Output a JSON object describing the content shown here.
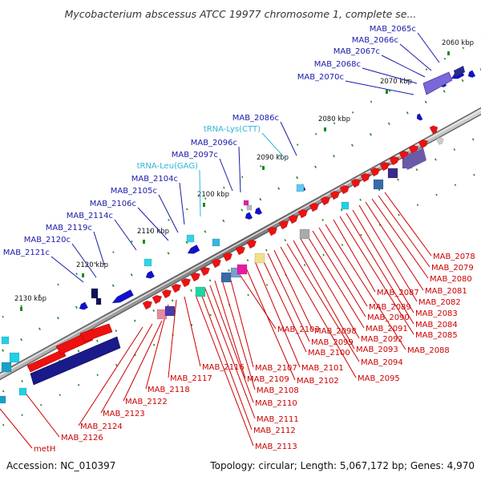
{
  "title": "Mycobacterium abscessus ATCC 19977 chromosome 1, complete se...",
  "footer": {
    "accession": "Accession: NC_010397",
    "summary": "Topology: circular; Length: 5,067,172 bp; Genes: 4,970"
  },
  "colors": {
    "minus_strand_label": "#1a1aa8",
    "rna_label": "#31b6d8",
    "plus_strand_label": "#cc0000",
    "plus_cds": "#ee1111",
    "minus_cds": "#1111cc",
    "backbone": "#888888"
  },
  "scale_ticks": [
    {
      "label": "2060 kbp"
    },
    {
      "label": "2070 kbp"
    },
    {
      "label": "2080 kbp"
    },
    {
      "label": "2090 kbp"
    },
    {
      "label": "2100 kbp"
    },
    {
      "label": "2110 kbp"
    },
    {
      "label": "2120 kbp"
    },
    {
      "label": "2130 kbp"
    }
  ],
  "upper_labels": [
    {
      "text": "MAB_2065c",
      "type": "minus"
    },
    {
      "text": "MAB_2066c",
      "type": "minus"
    },
    {
      "text": "MAB_2067c",
      "type": "minus"
    },
    {
      "text": "MAB_2068c",
      "type": "minus"
    },
    {
      "text": "MAB_2070c",
      "type": "minus"
    },
    {
      "text": "MAB_2086c",
      "type": "minus"
    },
    {
      "text": "tRNA-Lys(CTT)",
      "type": "rna"
    },
    {
      "text": "MAB_2096c",
      "type": "minus"
    },
    {
      "text": "MAB_2097c",
      "type": "minus"
    },
    {
      "text": "tRNA-Leu(GAG)",
      "type": "rna"
    },
    {
      "text": "MAB_2104c",
      "type": "minus"
    },
    {
      "text": "MAB_2105c",
      "type": "minus"
    },
    {
      "text": "MAB_2106c",
      "type": "minus"
    },
    {
      "text": "MAB_2114c",
      "type": "minus"
    },
    {
      "text": "MAB_2119c",
      "type": "minus"
    },
    {
      "text": "MAB_2120c",
      "type": "minus"
    },
    {
      "text": "MAB_2121c",
      "type": "minus"
    }
  ],
  "lower_labels": [
    {
      "text": "MAB_2078"
    },
    {
      "text": "MAB_2079"
    },
    {
      "text": "MAB_2080"
    },
    {
      "text": "MAB_2081"
    },
    {
      "text": "MAB_2082"
    },
    {
      "text": "MAB_2083"
    },
    {
      "text": "MAB_2084"
    },
    {
      "text": "MAB_2085"
    },
    {
      "text": "MAB_2087"
    },
    {
      "text": "MAB_2088"
    },
    {
      "text": "MAB_2089"
    },
    {
      "text": "MAB_2090"
    },
    {
      "text": "MAB_2091"
    },
    {
      "text": "MAB_2092"
    },
    {
      "text": "MAB_2093"
    },
    {
      "text": "MAB_2094"
    },
    {
      "text": "MAB_2095"
    },
    {
      "text": "MAB_2098"
    },
    {
      "text": "MAB_2099"
    },
    {
      "text": "MAB_2100"
    },
    {
      "text": "MAB_2101"
    },
    {
      "text": "MAB_2102"
    },
    {
      "text": "MAB_2103"
    },
    {
      "text": "MAB_2107"
    },
    {
      "text": "MAB_2108"
    },
    {
      "text": "MAB_2109"
    },
    {
      "text": "MAB_2110"
    },
    {
      "text": "MAB_2111"
    },
    {
      "text": "MAB_2112"
    },
    {
      "text": "MAB_2113"
    },
    {
      "text": "MAB_2116"
    },
    {
      "text": "MAB_2117"
    },
    {
      "text": "MAB_2118"
    },
    {
      "text": "MAB_2122"
    },
    {
      "text": "MAB_2123"
    },
    {
      "text": "MAB_2124"
    },
    {
      "text": "MAB_2126"
    },
    {
      "text": "metH"
    }
  ]
}
